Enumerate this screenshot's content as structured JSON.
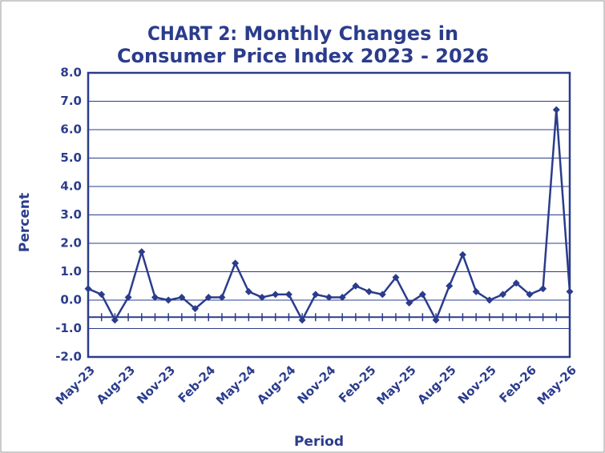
{
  "chart_data": {
    "type": "line",
    "title_prefix": "CHART 2:",
    "title_lines": [
      "Monthly Changes in",
      "Consumer Price Index 2023 - 2026"
    ],
    "xlabel": "Period",
    "ylabel": "Percent",
    "categories": [
      "May-23",
      null,
      null,
      "Aug-23",
      null,
      null,
      "Nov-23",
      null,
      null,
      "Feb-24",
      null,
      null,
      "May-24",
      null,
      null,
      "Aug-24",
      null,
      null,
      "Nov-24",
      null,
      null,
      "Feb-25",
      null,
      null,
      "May-25",
      null,
      null,
      "Aug-25",
      null,
      null,
      "Nov-25",
      null,
      null,
      "Feb-26",
      null,
      null,
      "May-26"
    ],
    "series": [
      {
        "name": "Monthly Changes in Consumer Price Index",
        "color": "#2b3c8c",
        "values": [
          0.4,
          0.2,
          -0.7,
          0.1,
          1.7,
          0.1,
          0.0,
          0.1,
          -0.3,
          0.1,
          0.1,
          1.3,
          0.3,
          0.1,
          0.2,
          0.2,
          -0.7,
          0.2,
          0.1,
          0.1,
          0.5,
          0.3,
          0.2,
          0.8,
          -0.1,
          0.2,
          -0.7,
          0.5,
          1.6,
          0.3,
          0.0,
          0.2,
          0.6,
          0.2,
          0.4,
          6.7,
          0.3
        ]
      }
    ],
    "ylim": [
      -2,
      8
    ],
    "yticks": [
      {
        "value": -2,
        "label": "-2.0"
      },
      {
        "value": -1,
        "label": "-1.0"
      },
      {
        "value": 0,
        "label": "0.0"
      },
      {
        "value": 1,
        "label": "1.0"
      },
      {
        "value": 2,
        "label": "2.0"
      },
      {
        "value": 3,
        "label": "3.0"
      },
      {
        "value": 4,
        "label": "4.0"
      },
      {
        "value": 5,
        "label": "5.0"
      },
      {
        "value": 6,
        "label": "6.0"
      },
      {
        "value": 7,
        "label": "7.0"
      },
      {
        "value": 8,
        "label": "8.0"
      }
    ],
    "xaxis_at": -0.6,
    "grid": true
  }
}
